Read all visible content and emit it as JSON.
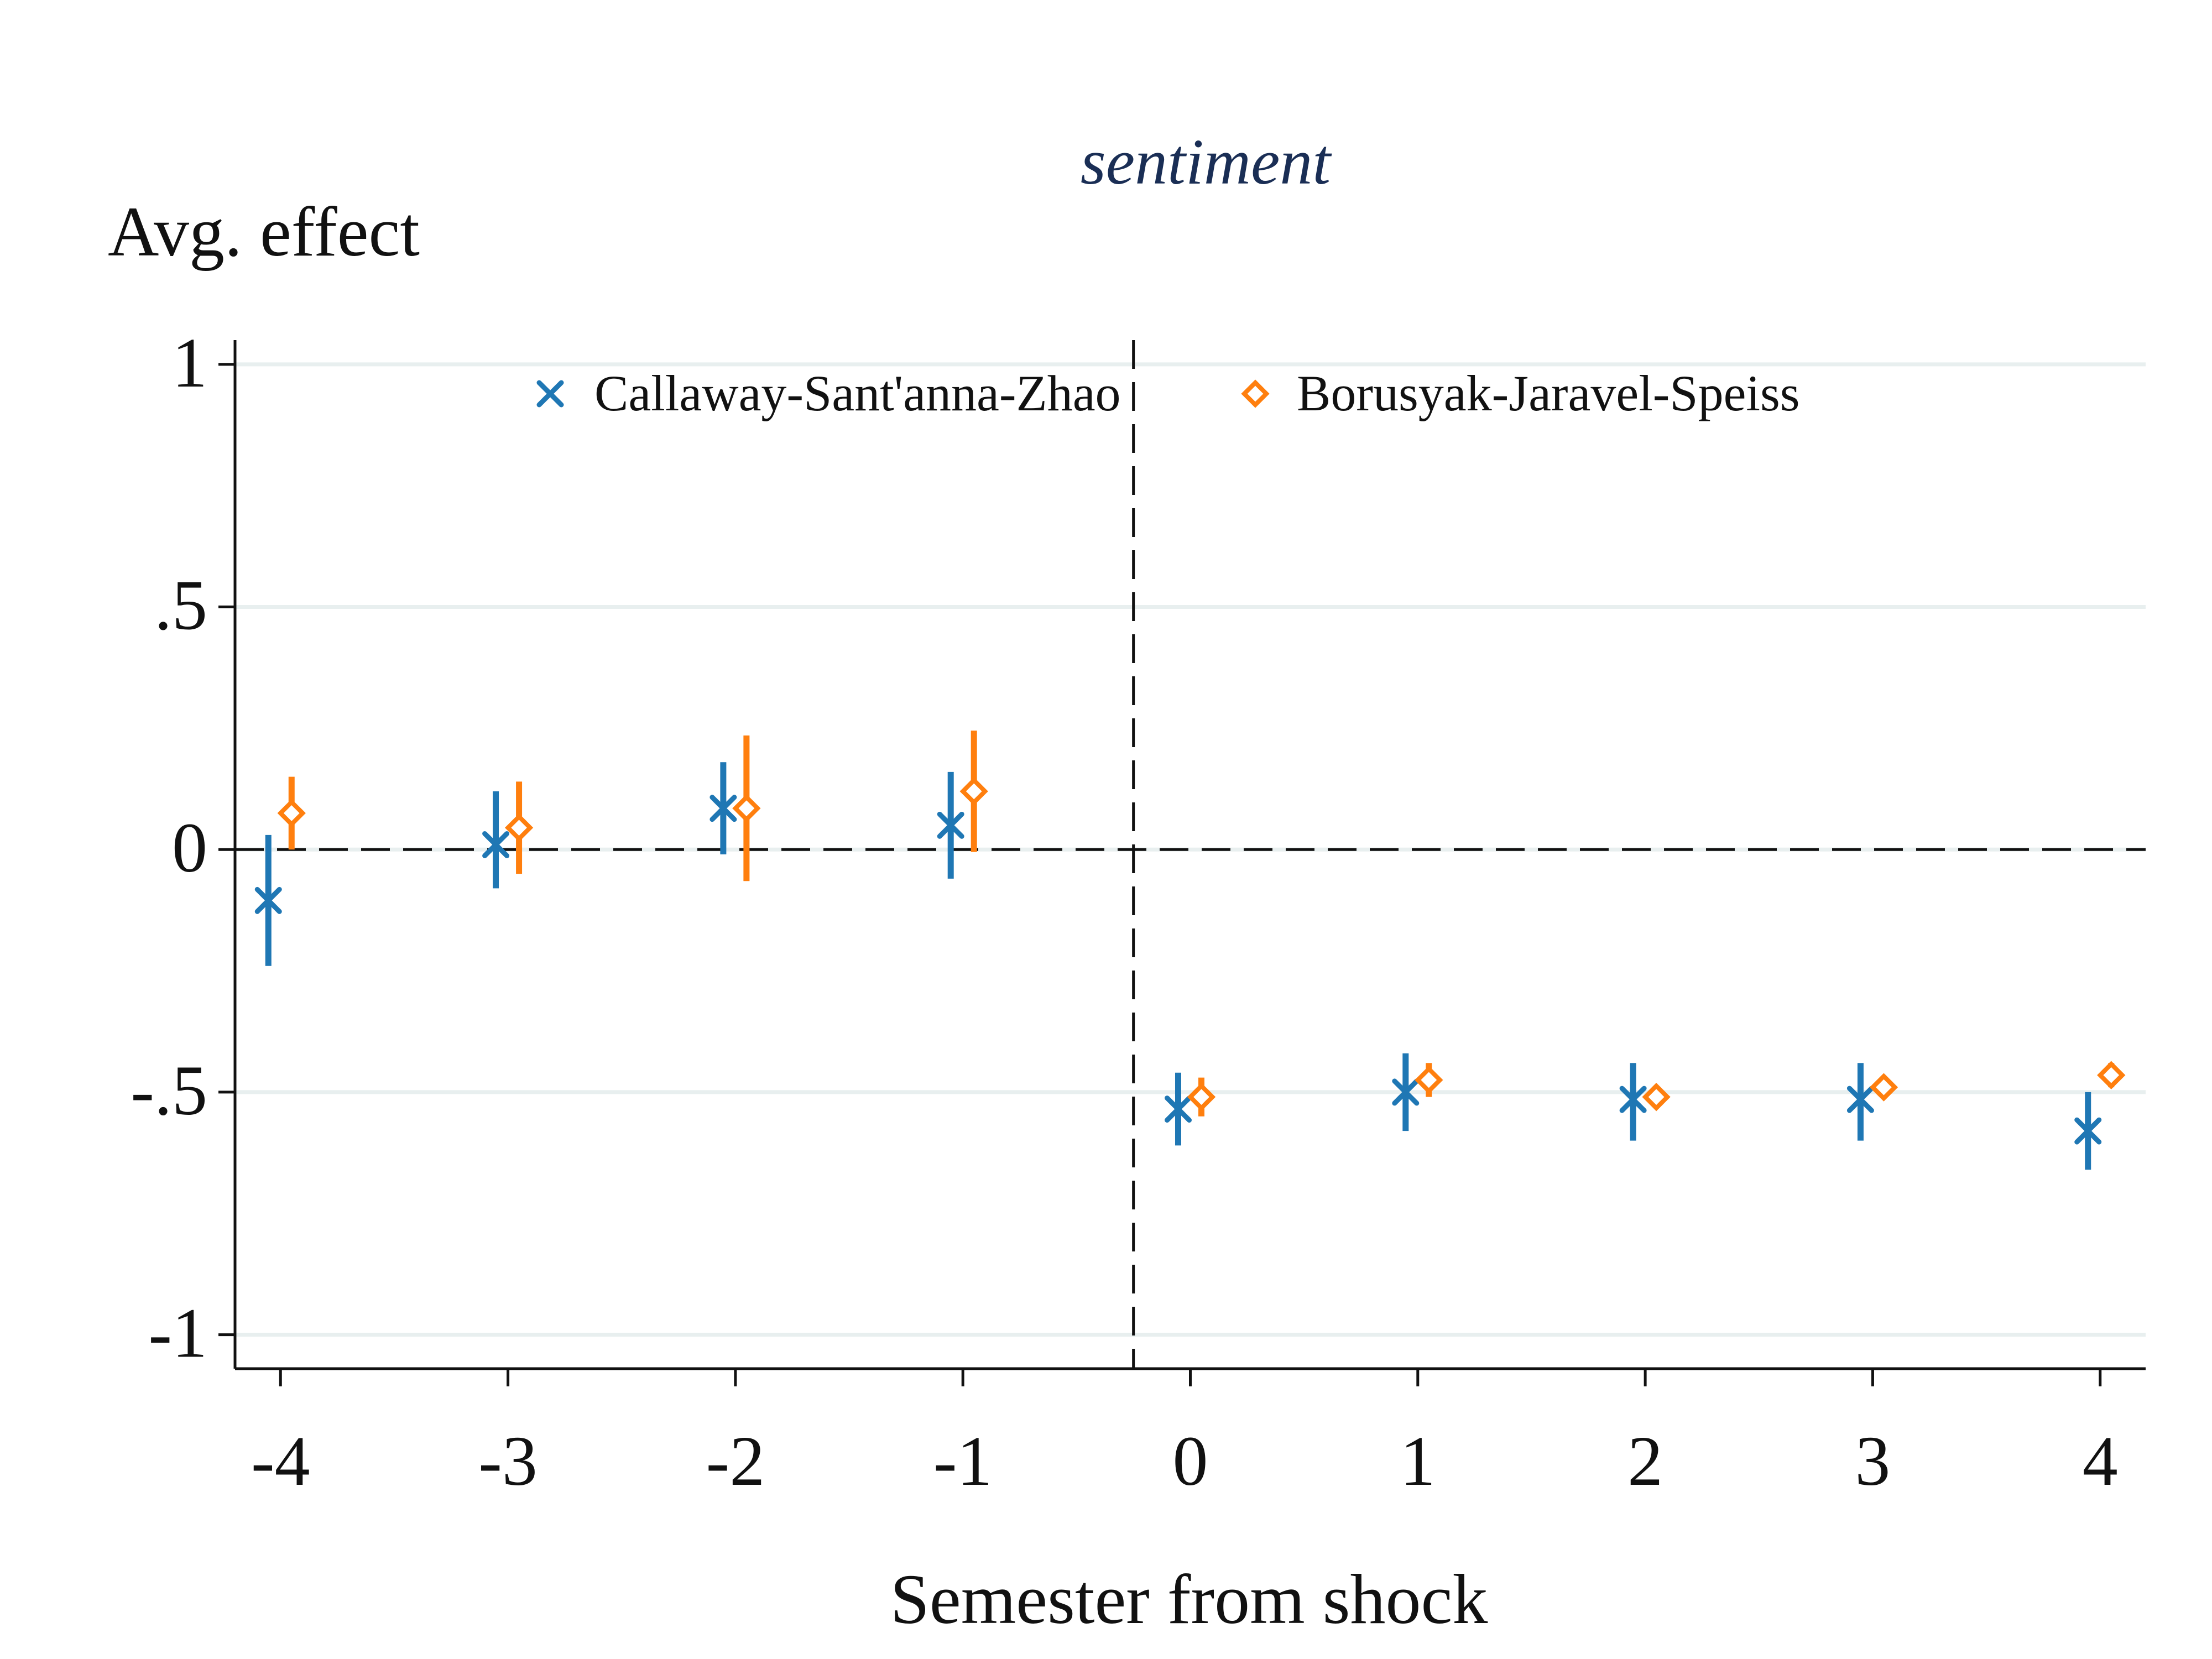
{
  "chart_data": {
    "type": "scatter",
    "title": "sentiment",
    "ylabel": "Avg. effect",
    "xlabel": "Semester from shock",
    "xlim": [
      -4.2,
      4.2
    ],
    "ylim": [
      -1.07,
      1.05
    ],
    "x_ticks": [
      -4,
      -3,
      -2,
      -1,
      0,
      1,
      2,
      3,
      4
    ],
    "x_tick_labels": [
      "-4",
      "-3",
      "-2",
      "-1",
      "0",
      "1",
      "2",
      "3",
      "4"
    ],
    "y_ticks": [
      1,
      0.5,
      0,
      -0.5,
      -1
    ],
    "y_tick_labels": [
      "1",
      ".5",
      "0",
      "-.5",
      "-1"
    ],
    "grid": true,
    "legend": "top",
    "reference_lines": {
      "horizontal": 0,
      "vertical": -0.25
    },
    "series": [
      {
        "name": "Callaway-Sant'anna-Zhao",
        "color": "#1f77b4",
        "marker": "x",
        "points": [
          {
            "x": -4,
            "y": -0.105,
            "ci": [
              -0.24,
              0.03
            ]
          },
          {
            "x": -3,
            "y": 0.01,
            "ci": [
              -0.08,
              0.12
            ]
          },
          {
            "x": -2,
            "y": 0.085,
            "ci": [
              -0.01,
              0.18
            ]
          },
          {
            "x": -1,
            "y": 0.05,
            "ci": [
              -0.06,
              0.16
            ]
          },
          {
            "x": 0,
            "y": -0.535,
            "ci": [
              -0.61,
              -0.46
            ]
          },
          {
            "x": 1,
            "y": -0.5,
            "ci": [
              -0.58,
              -0.42
            ]
          },
          {
            "x": 2,
            "y": -0.515,
            "ci": [
              -0.6,
              -0.44
            ]
          },
          {
            "x": 3,
            "y": -0.515,
            "ci": [
              -0.6,
              -0.44
            ]
          },
          {
            "x": 4,
            "y": -0.58,
            "ci": [
              -0.66,
              -0.5
            ]
          }
        ]
      },
      {
        "name": "Borusyak-Jaravel-Speiss",
        "color": "#ff7f0e",
        "marker": "diamond",
        "points": [
          {
            "x": -4,
            "y": 0.075,
            "ci": [
              0.0,
              0.15
            ]
          },
          {
            "x": -3,
            "y": 0.045,
            "ci": [
              -0.05,
              0.14
            ]
          },
          {
            "x": -2,
            "y": 0.085,
            "ci": [
              -0.065,
              0.235
            ]
          },
          {
            "x": -1,
            "y": 0.12,
            "ci": [
              -0.005,
              0.245
            ]
          },
          {
            "x": 0,
            "y": -0.51,
            "ci": [
              -0.55,
              -0.47
            ]
          },
          {
            "x": 1,
            "y": -0.475,
            "ci": [
              -0.51,
              -0.44
            ]
          },
          {
            "x": 2,
            "y": -0.51,
            "ci": [
              -0.53,
              -0.49
            ]
          },
          {
            "x": 3,
            "y": -0.49,
            "ci": [
              -0.51,
              -0.47
            ]
          },
          {
            "x": 4,
            "y": -0.465,
            "ci": [
              -0.49,
              -0.44
            ]
          }
        ]
      }
    ]
  }
}
